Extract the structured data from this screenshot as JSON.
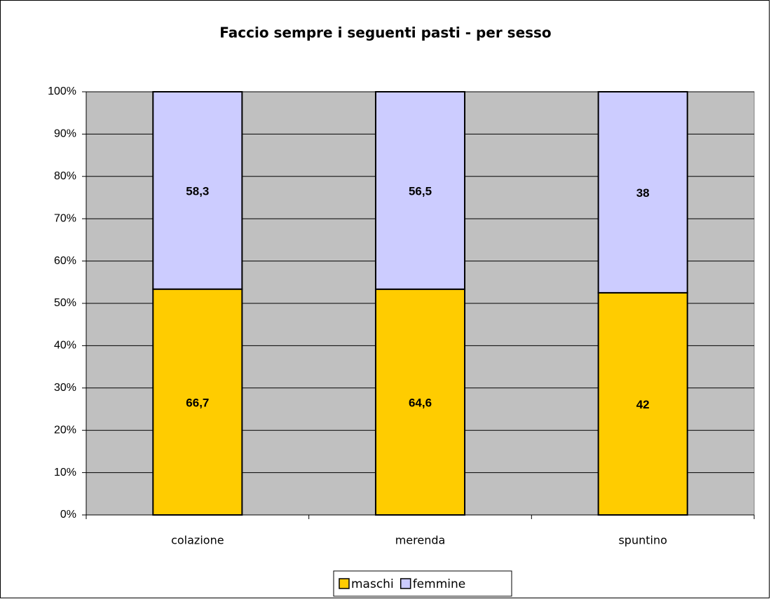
{
  "chart_data": {
    "type": "bar",
    "stacked": "percent",
    "title": "Faccio sempre i seguenti pasti - per sesso",
    "categories": [
      "colazione",
      "merenda",
      "spuntino"
    ],
    "series": [
      {
        "name": "maschi",
        "color": "#ffcc00",
        "values": [
          66.7,
          64.6,
          42
        ],
        "value_labels": [
          "66,7",
          "64,6",
          "42"
        ]
      },
      {
        "name": "femmine",
        "color": "#ccccff",
        "values": [
          58.3,
          56.5,
          38
        ],
        "value_labels": [
          "58,3",
          "56,5",
          "38"
        ]
      }
    ],
    "ylim": [
      0,
      100
    ],
    "yticks": [
      {
        "value": 0,
        "label": "0%"
      },
      {
        "value": 10,
        "label": "10%"
      },
      {
        "value": 20,
        "label": "20%"
      },
      {
        "value": 30,
        "label": "30%"
      },
      {
        "value": 40,
        "label": "40%"
      },
      {
        "value": 50,
        "label": "50%"
      },
      {
        "value": 60,
        "label": "60%"
      },
      {
        "value": 70,
        "label": "70%"
      },
      {
        "value": 80,
        "label": "80%"
      },
      {
        "value": 90,
        "label": "90%"
      },
      {
        "value": 100,
        "label": "100%"
      }
    ],
    "grid": true,
    "legend": "bottom",
    "plot_background": "#c0c0c0"
  }
}
